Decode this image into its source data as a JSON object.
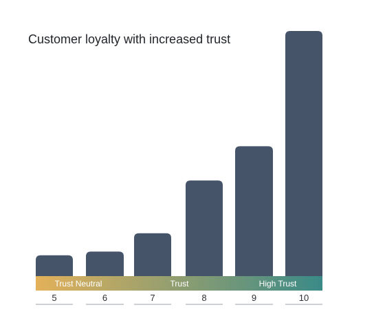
{
  "chart_data": {
    "type": "bar",
    "title": "Customer loyalty with increased trust",
    "categories": [
      "5",
      "6",
      "7",
      "8",
      "9",
      "10"
    ],
    "values": [
      8.5,
      10,
      17.5,
      39,
      53,
      100
    ],
    "ylim": [
      0,
      100
    ],
    "xlabel": "",
    "ylabel": "",
    "grid": false,
    "trust_band": {
      "labels": [
        "Trust Neutral",
        "Trust",
        "High Trust"
      ],
      "colors": [
        "#e3b15a",
        "#3a8a88"
      ]
    },
    "colors": {
      "bar": "#455468",
      "baseline": "#9ba1a8",
      "category_text": "#2b2f36"
    }
  }
}
